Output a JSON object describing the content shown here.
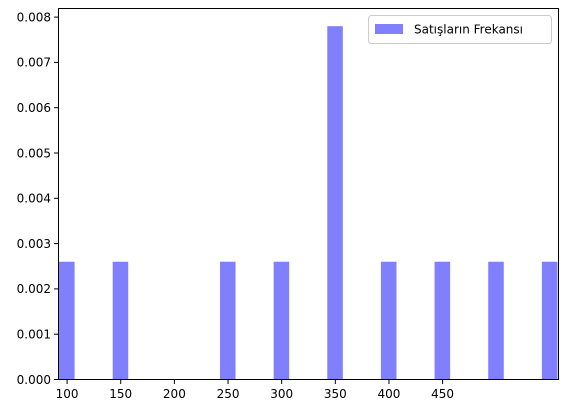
{
  "chart_data": {
    "type": "bar",
    "title": "",
    "xlabel": "",
    "ylabel": "",
    "x_range": [
      92,
      558
    ],
    "y_range": [
      0,
      0.00819
    ],
    "x_ticks": [
      100,
      150,
      200,
      250,
      300,
      350,
      400,
      450
    ],
    "x_tick_labels": [
      "100",
      "150",
      "200",
      "250",
      "300",
      "350",
      "400",
      "450"
    ],
    "y_ticks": [
      0,
      0.001,
      0.002,
      0.003,
      0.004,
      0.005,
      0.006,
      0.007,
      0.008
    ],
    "y_tick_labels": [
      "0.000",
      "0.001",
      "0.002",
      "0.003",
      "0.004",
      "0.005",
      "0.006",
      "0.007",
      "0.008"
    ],
    "bar_width": 14.5,
    "series": [
      {
        "name": "Satışların Frekansı",
        "color": "#8080ff",
        "bars": [
          {
            "x": 110,
            "value": 0.0026
          },
          {
            "x": 160,
            "value": 0.0026
          },
          {
            "x": 210,
            "value": 0
          },
          {
            "x": 260,
            "value": 0.0026
          },
          {
            "x": 310,
            "value": 0.0026
          },
          {
            "x": 360,
            "value": 0.0078
          },
          {
            "x": 410,
            "value": 0.0026
          },
          {
            "x": 460,
            "value": 0.0026
          },
          {
            "x": 510,
            "value": 0.0026
          },
          {
            "x": 560,
            "value": 0.0026
          }
        ]
      }
    ],
    "grid": false,
    "legend_position": "top-right"
  }
}
